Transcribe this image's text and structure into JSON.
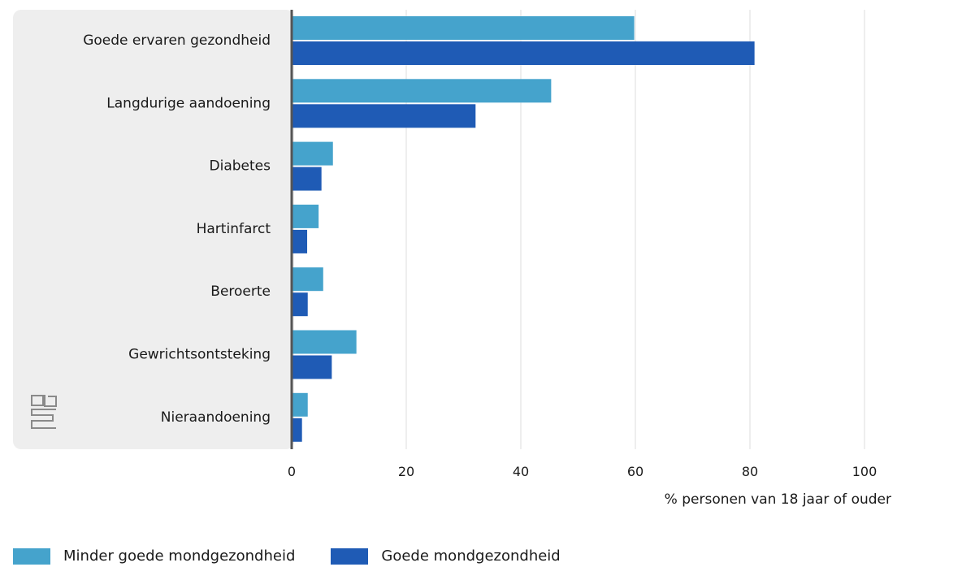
{
  "chart_data": {
    "type": "bar",
    "orientation": "horizontal",
    "categories": [
      "Goede ervaren gezondheid",
      "Langdurige aandoening",
      "Diabetes",
      "Hartinfarct",
      "Beroerte",
      "Gewrichtsontsteking",
      "Nieraandoening"
    ],
    "series": [
      {
        "name": "Minder goede mondgezondheid",
        "color": "#45a3cc",
        "values": [
          59.8,
          45.3,
          7.2,
          4.7,
          5.5,
          11.3,
          2.8
        ]
      },
      {
        "name": "Goede mondgezondheid",
        "color": "#1f5bb5",
        "values": [
          80.8,
          32.1,
          5.2,
          2.7,
          2.8,
          7.0,
          1.8
        ]
      }
    ],
    "xlabel": "% personen van 18 jaar of ouder",
    "xlim": [
      0,
      100
    ],
    "xticks": [
      0,
      20,
      40,
      60,
      80,
      100
    ],
    "grid": true,
    "legend_position": "bottom-left"
  },
  "logo": {
    "icon": "cbs-logo-icon",
    "text": "cbs"
  }
}
